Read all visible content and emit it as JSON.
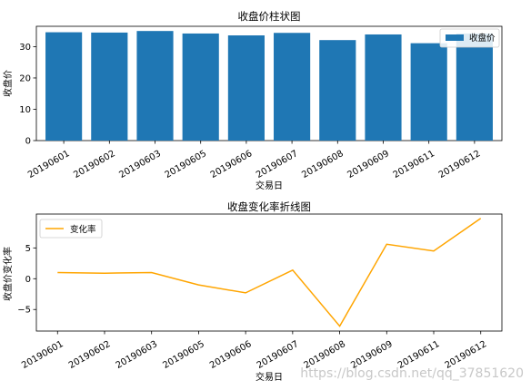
{
  "chart_data": [
    {
      "type": "bar",
      "title": "收盘价柱状图",
      "xlabel": "交易日",
      "ylabel": "收盘价",
      "categories": [
        "20190601",
        "20190602",
        "20190603",
        "20190605",
        "20190606",
        "20190607",
        "20190608",
        "20190609",
        "20190611",
        "20190612"
      ],
      "series": [
        {
          "name": "收盘价",
          "values": [
            34.6,
            34.5,
            35.0,
            34.2,
            33.6,
            34.4,
            32.1,
            33.9,
            31.1,
            34.2
          ],
          "color": "#1f77b4"
        }
      ],
      "ylim": [
        0,
        36.5
      ],
      "yticks": [
        0,
        10,
        20,
        30
      ],
      "legend": "top-right",
      "grid": false
    },
    {
      "type": "line",
      "title": "收盘变化率折线图",
      "xlabel": "交易日",
      "ylabel": "收盘价变化率",
      "categories": [
        "20190601",
        "20190602",
        "20190603",
        "20190605",
        "20190606",
        "20190607",
        "20190608",
        "20190609",
        "20190611",
        "20190612"
      ],
      "series": [
        {
          "name": "变化率",
          "values": [
            1.0,
            0.9,
            1.0,
            -1.0,
            -2.3,
            1.4,
            -7.7,
            5.6,
            4.5,
            9.8
          ],
          "color": "#ffa500"
        }
      ],
      "ylim": [
        -8.5,
        10.5
      ],
      "yticks": [
        -5,
        0,
        5
      ],
      "legend": "top-left",
      "grid": false
    }
  ],
  "watermark": "https://blog.csdn.net/qq_37851620"
}
